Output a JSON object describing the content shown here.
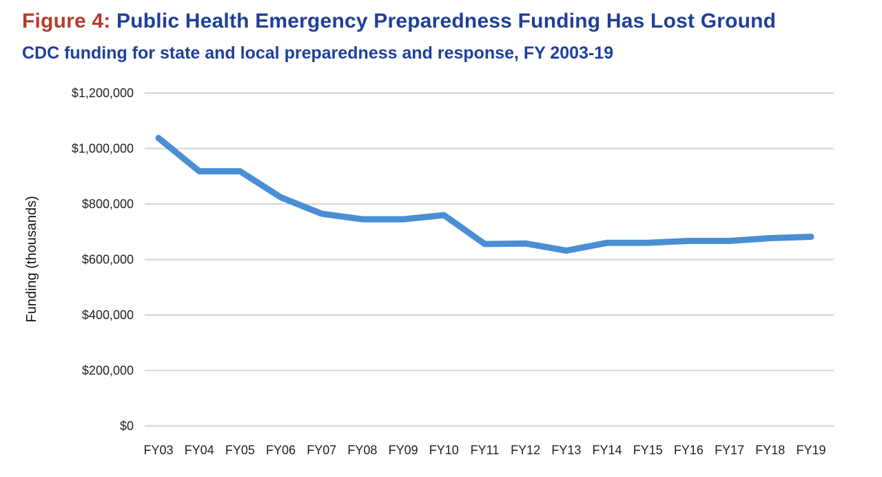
{
  "header": {
    "figure_label": "Figure 4:",
    "title": " Public Health Emergency Preparedness Funding Has Lost Ground",
    "subtitle": "CDC funding for state and local preparedness and response, FY 2003-19"
  },
  "colors": {
    "figure_label": "#b83a2a",
    "title": "#1f3f99",
    "line": "#4a8ed4",
    "grid": "#d4d4d4"
  },
  "chart_data": {
    "type": "line",
    "title": "Figure 4: Public Health Emergency Preparedness Funding Has Lost Ground",
    "subtitle": "CDC funding for state and local preparedness and response, FY 2003-19",
    "xlabel": "",
    "ylabel": "Funding (thousands)",
    "ylim": [
      0,
      1200000
    ],
    "yticks": [
      0,
      200000,
      400000,
      600000,
      800000,
      1000000,
      1200000
    ],
    "ytick_labels": [
      "$0",
      "$200,000",
      "$400,000",
      "$600,000",
      "$800,000",
      "$1,000,000",
      "$1,200,000"
    ],
    "grid": true,
    "legend": "none",
    "categories": [
      "FY03",
      "FY04",
      "FY05",
      "FY06",
      "FY07",
      "FY08",
      "FY09",
      "FY10",
      "FY11",
      "FY12",
      "FY13",
      "FY14",
      "FY15",
      "FY16",
      "FY17",
      "FY18",
      "FY19"
    ],
    "series": [
      {
        "name": "CDC funding",
        "values": [
          1038000,
          918000,
          918000,
          824000,
          765000,
          745000,
          745000,
          760000,
          656000,
          658000,
          632000,
          660000,
          660000,
          667000,
          667000,
          677000,
          682000
        ]
      }
    ]
  }
}
